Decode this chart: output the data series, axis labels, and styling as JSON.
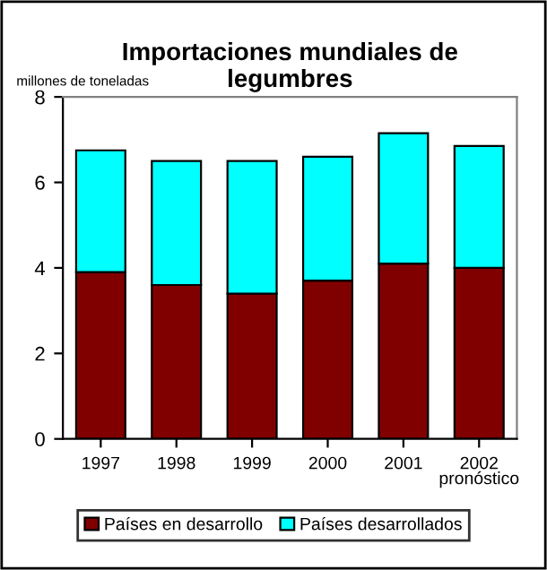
{
  "chart_data": {
    "type": "bar",
    "title": "Importaciones mundiales de\nlegumbres",
    "ylabel": "millones de toneladas",
    "stacked": true,
    "categories": [
      "1997",
      "1998",
      "1999",
      "2000",
      "2001",
      "2002\npronóstico"
    ],
    "series": [
      {
        "name": "Países en desarrollo",
        "color": "#800000",
        "values": [
          3.9,
          3.6,
          3.4,
          3.7,
          4.1,
          4.0
        ]
      },
      {
        "name": "Países desarrollados",
        "color": "#00ffff",
        "values": [
          2.85,
          2.9,
          3.1,
          2.9,
          3.05,
          2.85
        ]
      }
    ],
    "ylim": [
      0,
      8
    ],
    "yticks": [
      0,
      2,
      4,
      6,
      8
    ],
    "grid": false,
    "legend": "bottom"
  }
}
